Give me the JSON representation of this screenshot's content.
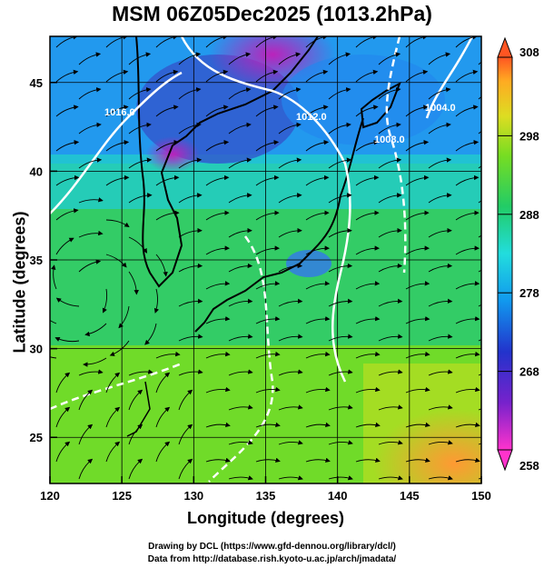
{
  "title": "MSM 06Z05Dec2025 (1013.2hPa)",
  "xlabel": "Longitude (degrees)",
  "ylabel": "Latitude  (degrees)",
  "credit_line1": "Drawing by DCL (https://www.gfd-dennou.org/library/dcl/)",
  "credit_line2": "Data from http://database.rish.kyoto-u.ac.jp/arch/jmadata/",
  "map": {
    "lon_ticks": [
      "120",
      "125",
      "130",
      "135",
      "140",
      "145",
      "150"
    ],
    "lat_ticks": [
      "25",
      "30",
      "35",
      "40",
      "45"
    ],
    "lon_range": [
      120,
      150
    ],
    "lat_range": [
      22.4,
      47.6
    ],
    "contour_labels": [
      "1016.0",
      "1012.0",
      "1008.0",
      "1004.0"
    ],
    "colorbar_ticks": [
      "308",
      "298",
      "288",
      "278",
      "268",
      "258"
    ],
    "colorbar_range": [
      258,
      308
    ],
    "colors": {
      "warm": "#ff9933",
      "mid": "#66dd22",
      "cool": "#22ccdd",
      "cold": "#2244cc",
      "coldest": "#cc22aa",
      "contour": "#ffffff"
    }
  }
}
